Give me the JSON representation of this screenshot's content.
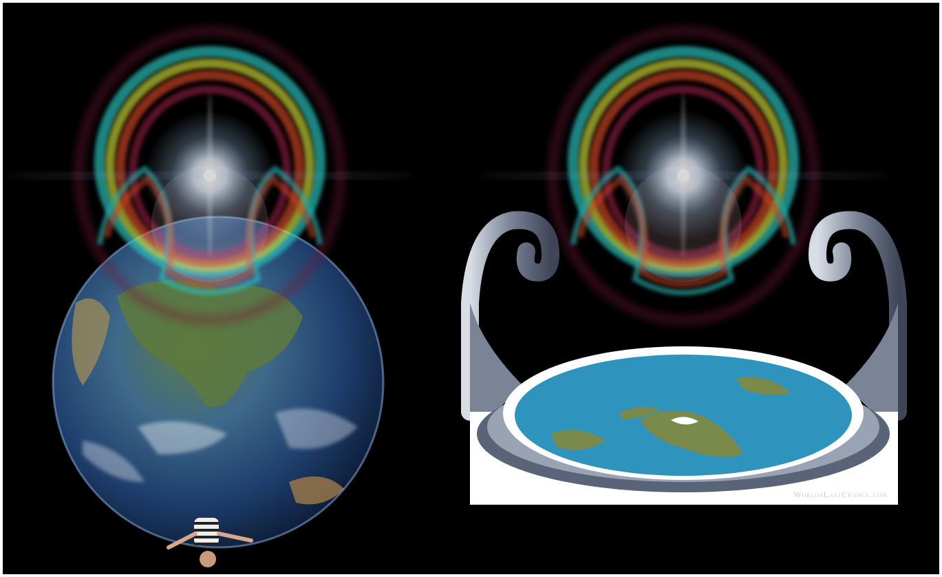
{
  "watermark": "WorldsLastChance.com"
}
